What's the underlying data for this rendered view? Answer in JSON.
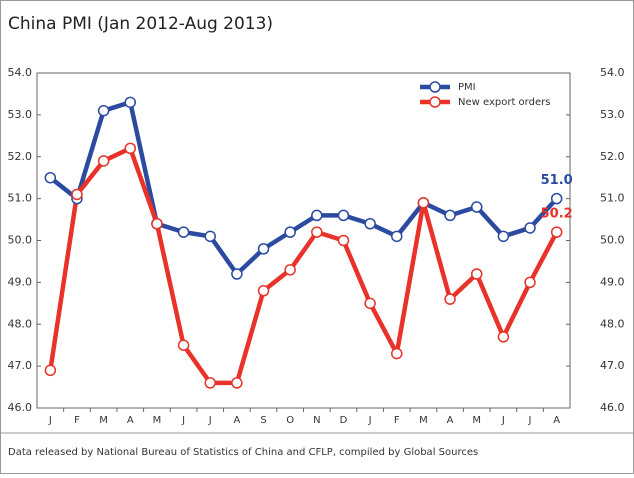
{
  "chart_data": {
    "type": "line",
    "title": "China PMI (Jan 2012-Aug 2013)",
    "source": "Data released by National Bureau of Statistics of China and CFLP, compiled by Global Sources",
    "categories": [
      "J",
      "F",
      "M",
      "A",
      "M",
      "J",
      "J",
      "A",
      "S",
      "O",
      "N",
      "D",
      "J",
      "F",
      "M",
      "A",
      "M",
      "J",
      "J",
      "A"
    ],
    "series": [
      {
        "name": "PMI",
        "color": "#2b4aa0",
        "values": [
          51.5,
          51.0,
          53.1,
          53.3,
          50.4,
          50.2,
          50.1,
          49.2,
          49.8,
          50.2,
          50.6,
          50.6,
          50.4,
          50.1,
          50.9,
          50.6,
          50.8,
          50.1,
          50.3,
          51.0
        ],
        "value_labels": [
          null,
          null,
          null,
          null,
          null,
          null,
          null,
          null,
          null,
          null,
          null,
          null,
          null,
          null,
          null,
          null,
          null,
          null,
          null,
          "51.0"
        ]
      },
      {
        "name": "New export orders",
        "color": "#e8322a",
        "values": [
          46.9,
          51.1,
          51.9,
          52.2,
          50.4,
          47.5,
          46.6,
          46.6,
          48.8,
          49.3,
          50.2,
          50.0,
          48.5,
          47.3,
          50.9,
          48.6,
          49.2,
          47.7,
          49.0,
          50.2
        ],
        "value_labels": [
          null,
          null,
          null,
          null,
          null,
          null,
          null,
          null,
          null,
          null,
          null,
          null,
          null,
          null,
          null,
          null,
          null,
          null,
          null,
          "50.2"
        ]
      }
    ],
    "ylim": [
      46,
      54
    ],
    "yticks": [
      {
        "value": 46,
        "label": "46.0"
      },
      {
        "value": 47,
        "label": "47.0"
      },
      {
        "value": 48,
        "label": "48.0"
      },
      {
        "value": 49,
        "label": "49.0"
      },
      {
        "value": 50,
        "label": "50.0"
      },
      {
        "value": 51,
        "label": "51.0"
      },
      {
        "value": 52,
        "label": "52.0"
      },
      {
        "value": 53,
        "label": "53.0"
      },
      {
        "value": 54,
        "label": "54.0"
      }
    ],
    "y2lim": [
      46,
      54
    ],
    "y2ticks": [
      {
        "value": 46,
        "label": "46.0"
      },
      {
        "value": 47,
        "label": "47.0"
      },
      {
        "value": 48,
        "label": "48.0"
      },
      {
        "value": 49,
        "label": "49.0"
      },
      {
        "value": 50,
        "label": "50.0"
      },
      {
        "value": 51,
        "label": "51.0"
      },
      {
        "value": 52,
        "label": "52.0"
      },
      {
        "value": 53,
        "label": "53.0"
      },
      {
        "value": 54,
        "label": "54.0"
      }
    ],
    "legend": "top-right"
  }
}
